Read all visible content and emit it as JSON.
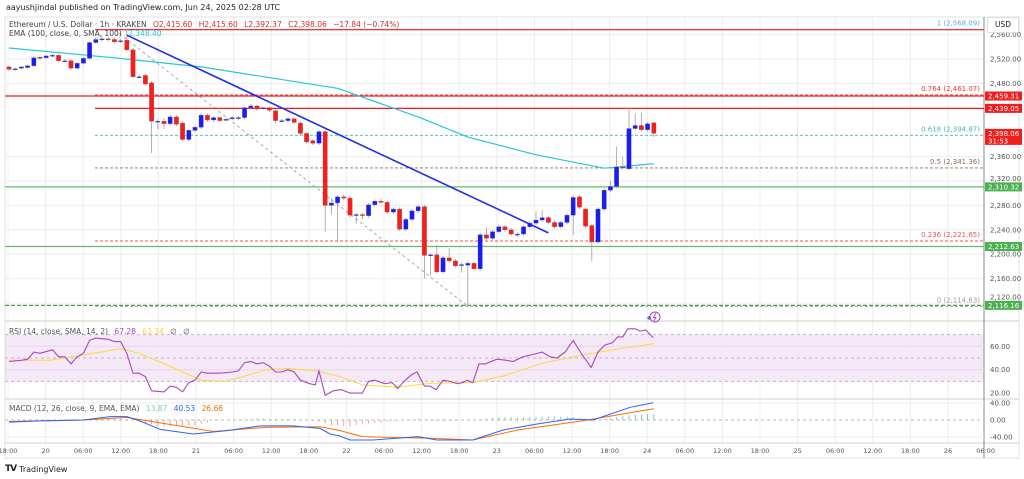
{
  "publish_line": "aayushjindal published on TradingView.com, Jun 24, 2025 02:28 UTC",
  "legend": {
    "symbol": "Ethereum / U.S. Dollar · 1h · KRAKEN",
    "open": "O2,415.60",
    "high": "H2,415.60",
    "low": "L2,392.37",
    "close": "C2,398.06",
    "change": "−17.84 (−0.74%)",
    "ema_label": "EMA (100, close, 0, SMA, 100)",
    "ema_value": "2,348.40"
  },
  "currency_button": "USD",
  "logo_text": "TradingView",
  "colors": {
    "up": "#1a1aff",
    "down": "#ff1a1a",
    "wick": "#9e9e9e",
    "ema": "#26c6da",
    "trendline": "#1e2ee8",
    "red_line": "#f21d1d",
    "green_line": "#66bb6a",
    "rsi": "#ab47bc",
    "rsi_sma": "#fdd835",
    "macd": "#2962ff",
    "signal": "#ff6d00",
    "hist_pos": "#26a69a",
    "hist_neg": "#ff5252"
  },
  "chart_data": {
    "type": "candlestick",
    "title": "Ethereum / U.S. Dollar · 1h · KRAKEN",
    "price_ticks": [
      2560,
      2520,
      2480,
      2360,
      2320,
      2280,
      2240,
      2200,
      2160,
      2120
    ],
    "price_tick_labels": [
      "2,560.00",
      "2,520.00",
      "2,480.00",
      "2,360.00",
      "2,320.00",
      "2,280.00",
      "2,240.00",
      "2,200.00",
      "2,160.00",
      "2,120.00"
    ],
    "grid": true,
    "time_tick_labels": [
      "18:00",
      "20",
      "06:00",
      "12:00",
      "18:00",
      "21",
      "06:00",
      "12:00",
      "18:00",
      "22",
      "06:00",
      "12:00",
      "18:00",
      "23",
      "06:00",
      "12:00",
      "18:00",
      "24",
      "06:00",
      "12:00",
      "18:00",
      "25",
      "06:00",
      "12:00",
      "18:00",
      "26",
      "06:00"
    ],
    "candles_ohlc": [
      [
        2507,
        2509,
        2501,
        2503
      ],
      [
        2503,
        2506,
        2501,
        2504
      ],
      [
        2505,
        2508,
        2503,
        2507
      ],
      [
        2506,
        2510,
        2504,
        2509
      ],
      [
        2509,
        2525,
        2507,
        2522
      ],
      [
        2523,
        2526,
        2519,
        2521
      ],
      [
        2522,
        2527,
        2520,
        2525
      ],
      [
        2525,
        2528,
        2523,
        2526
      ],
      [
        2526,
        2528,
        2514,
        2517
      ],
      [
        2517,
        2520,
        2514,
        2517
      ],
      [
        2517,
        2519,
        2502,
        2505
      ],
      [
        2505,
        2515,
        2503,
        2513
      ],
      [
        2513,
        2523,
        2511,
        2521
      ],
      [
        2521,
        2549,
        2519,
        2547
      ],
      [
        2547,
        2556,
        2545,
        2552
      ],
      [
        2552,
        2558,
        2549,
        2553
      ],
      [
        2553,
        2556,
        2549,
        2552
      ],
      [
        2552,
        2555,
        2546,
        2548
      ],
      [
        2549,
        2553,
        2546,
        2550
      ],
      [
        2551,
        2568.09,
        2532,
        2535
      ],
      [
        2535,
        2538,
        2489,
        2491
      ],
      [
        2491,
        2494,
        2488,
        2491
      ],
      [
        2493,
        2496,
        2476,
        2479
      ],
      [
        2481,
        2484,
        2366,
        2418
      ],
      [
        2418,
        2421,
        2405,
        2418
      ],
      [
        2418,
        2423,
        2405,
        2414
      ],
      [
        2414,
        2428,
        2410,
        2425
      ],
      [
        2425,
        2428,
        2410,
        2413
      ],
      [
        2415,
        2418,
        2385,
        2388
      ],
      [
        2388,
        2405,
        2385,
        2403
      ],
      [
        2403,
        2411,
        2400,
        2408
      ],
      [
        2408,
        2431,
        2405,
        2428
      ],
      [
        2428,
        2431,
        2417,
        2420
      ],
      [
        2420,
        2426,
        2417,
        2424
      ],
      [
        2424,
        2426,
        2416,
        2419
      ],
      [
        2421,
        2423,
        2418,
        2421
      ],
      [
        2422,
        2426,
        2420,
        2424
      ],
      [
        2424,
        2427,
        2421,
        2424
      ],
      [
        2424,
        2442,
        2421,
        2440
      ],
      [
        2440,
        2446,
        2437,
        2443
      ],
      [
        2443,
        2445,
        2435,
        2438
      ],
      [
        2440,
        2442,
        2437,
        2440
      ],
      [
        2440,
        2442,
        2433,
        2436
      ],
      [
        2435,
        2437,
        2415,
        2419
      ],
      [
        2419,
        2422,
        2416,
        2419
      ],
      [
        2419,
        2425,
        2416,
        2422
      ],
      [
        2422,
        2424,
        2413,
        2416
      ],
      [
        2415,
        2418,
        2395,
        2398
      ],
      [
        2398,
        2400,
        2381,
        2384
      ],
      [
        2386,
        2389,
        2379,
        2382
      ],
      [
        2382,
        2404,
        2379,
        2401
      ],
      [
        2401,
        2404,
        2237,
        2280
      ],
      [
        2280,
        2292,
        2265,
        2284
      ],
      [
        2284,
        2297,
        2220,
        2294
      ],
      [
        2294,
        2298,
        2289,
        2292
      ],
      [
        2292,
        2295,
        2260,
        2264
      ],
      [
        2265,
        2268,
        2250,
        2265
      ],
      [
        2265,
        2268,
        2258,
        2264
      ],
      [
        2263,
        2284,
        2260,
        2281
      ],
      [
        2281,
        2290,
        2278,
        2287
      ],
      [
        2287,
        2291,
        2282,
        2285
      ],
      [
        2285,
        2288,
        2266,
        2269
      ],
      [
        2269,
        2277,
        2266,
        2274
      ],
      [
        2274,
        2277,
        2238,
        2241
      ],
      [
        2241,
        2260,
        2238,
        2257
      ],
      [
        2257,
        2274,
        2254,
        2271
      ],
      [
        2271,
        2281,
        2268,
        2278
      ],
      [
        2278,
        2281,
        2160,
        2198
      ],
      [
        2199,
        2202,
        2165,
        2199
      ],
      [
        2199,
        2215,
        2168,
        2171
      ],
      [
        2171,
        2197,
        2168,
        2194
      ],
      [
        2194,
        2210,
        2186,
        2189
      ],
      [
        2189,
        2192,
        2178,
        2181
      ],
      [
        2182,
        2186,
        2170,
        2183
      ],
      [
        2182,
        2188,
        2114.63,
        2185
      ],
      [
        2185,
        2188,
        2173,
        2176
      ],
      [
        2176,
        2235,
        2173,
        2232
      ],
      [
        2232,
        2244,
        2223,
        2226
      ],
      [
        2226,
        2240,
        2223,
        2237
      ],
      [
        2237,
        2248,
        2234,
        2245
      ],
      [
        2245,
        2248,
        2237,
        2240
      ],
      [
        2240,
        2243,
        2230,
        2233
      ],
      [
        2233,
        2236,
        2228,
        2233
      ],
      [
        2233,
        2248,
        2230,
        2245
      ],
      [
        2245,
        2254,
        2242,
        2251
      ],
      [
        2251,
        2270,
        2248,
        2256
      ],
      [
        2256,
        2272,
        2253,
        2260
      ],
      [
        2260,
        2263,
        2249,
        2252
      ],
      [
        2252,
        2255,
        2242,
        2245
      ],
      [
        2245,
        2255,
        2242,
        2252
      ],
      [
        2252,
        2267,
        2249,
        2264
      ],
      [
        2264,
        2296,
        2231,
        2293
      ],
      [
        2294,
        2297,
        2274,
        2277
      ],
      [
        2274,
        2277,
        2243,
        2246
      ],
      [
        2247,
        2250,
        2189,
        2220
      ],
      [
        2220,
        2277,
        2217,
        2274
      ],
      [
        2274,
        2308,
        2271,
        2305
      ],
      [
        2305,
        2320,
        2302,
        2311
      ],
      [
        2311,
        2376,
        2308,
        2343
      ],
      [
        2343,
        2360,
        2339,
        2342
      ],
      [
        2340,
        2440,
        2337,
        2406
      ],
      [
        2406,
        2431,
        2403,
        2411
      ],
      [
        2411,
        2432,
        2401,
        2404
      ],
      [
        2404,
        2416,
        2401,
        2414
      ],
      [
        2415.6,
        2415.6,
        2392.37,
        2398.06
      ]
    ],
    "ema100_points_bar_price": [
      [
        0,
        2538
      ],
      [
        17,
        2522
      ],
      [
        31,
        2507
      ],
      [
        53,
        2472
      ],
      [
        66,
        2425
      ],
      [
        74,
        2392
      ],
      [
        85,
        2363
      ],
      [
        96,
        2341
      ],
      [
        104,
        2348.4
      ]
    ],
    "trendline_bar_price": [
      [
        19,
        2559
      ],
      [
        87,
        2235
      ]
    ],
    "fib_anchor_bar_price": [
      [
        17,
        2568.09
      ],
      [
        74,
        2114.63
      ]
    ],
    "fib_levels": [
      {
        "label": "1 (2,568.09)",
        "price": 2568.09,
        "color": "#64a8d8"
      },
      {
        "label": "0.764 (2,461.07)",
        "price": 2461.07,
        "color": "#e53935"
      },
      {
        "label": "0.618 (2,394.87)",
        "price": 2394.87,
        "color": "#4db6ac"
      },
      {
        "label": "0.5 (2,341.36)",
        "price": 2341.36,
        "color": "#8d6e63"
      },
      {
        "label": "0.236 (2,221.65)",
        "price": 2221.65,
        "color": "#ef5350"
      },
      {
        "label": "0 (2,114.63)",
        "price": 2114.63,
        "color": "#9e9e9e"
      }
    ],
    "horizontal_lines": [
      {
        "price": 2568.09,
        "color": "#f21d1d",
        "style": "solid"
      },
      {
        "price": 2459.31,
        "color": "#f21d1d",
        "style": "solid"
      },
      {
        "price": 2439.05,
        "color": "#f21d1d",
        "style": "solid"
      },
      {
        "price": 2310.32,
        "color": "#66bb6a",
        "style": "solid"
      },
      {
        "price": 2212.63,
        "color": "#66bb6a",
        "style": "solid"
      },
      {
        "price": 2116.16,
        "color": "#43a047",
        "style": "dashed"
      }
    ],
    "price_badges": [
      {
        "text": "2,459.31",
        "price": 2459.31,
        "color": "#f21d1d"
      },
      {
        "text": "2,439.05",
        "price": 2439.05,
        "color": "#f21d1d"
      },
      {
        "text": "2,398.06",
        "sub": "31:53",
        "price": 2398.06,
        "color": "#f21d1d"
      },
      {
        "text": "2,310.32",
        "price": 2310.32,
        "color": "#4caf50"
      },
      {
        "text": "2,212.63",
        "price": 2212.63,
        "color": "#4caf50"
      },
      {
        "text": "2,116.16",
        "price": 2116.16,
        "color": "#4caf50"
      }
    ],
    "rsi": {
      "label": "RSI (14, close, SMA, 14, 2)",
      "value": "67.28",
      "sma_value": "62.34",
      "extra": [
        "∅",
        "∅"
      ],
      "ticks": [
        "60.00",
        "40.00",
        "20.00"
      ],
      "band": [
        30,
        70
      ],
      "points_bar_value": [
        [
          0,
          47
        ],
        [
          2,
          48
        ],
        [
          3,
          49
        ],
        [
          4,
          55
        ],
        [
          5,
          54
        ],
        [
          7,
          57
        ],
        [
          8,
          51
        ],
        [
          9,
          51
        ],
        [
          10,
          45
        ],
        [
          11,
          51
        ],
        [
          12,
          54
        ],
        [
          13,
          65
        ],
        [
          14,
          67
        ],
        [
          16,
          66
        ],
        [
          17,
          64
        ],
        [
          18,
          64
        ],
        [
          19,
          54
        ],
        [
          20,
          37
        ],
        [
          21,
          37
        ],
        [
          22,
          34
        ],
        [
          23,
          22
        ],
        [
          25,
          21
        ],
        [
          26,
          26
        ],
        [
          27,
          25
        ],
        [
          28,
          21
        ],
        [
          29,
          29
        ],
        [
          30,
          31
        ],
        [
          31,
          38
        ],
        [
          32,
          37
        ],
        [
          34,
          37
        ],
        [
          36,
          38
        ],
        [
          37,
          39
        ],
        [
          38,
          46
        ],
        [
          39,
          47
        ],
        [
          40,
          45
        ],
        [
          41,
          46
        ],
        [
          42,
          43
        ],
        [
          43,
          38
        ],
        [
          44,
          38
        ],
        [
          45,
          40
        ],
        [
          46,
          38
        ],
        [
          47,
          31
        ],
        [
          48.5,
          28
        ],
        [
          49.4,
          27
        ],
        [
          50,
          39
        ],
        [
          51,
          18
        ],
        [
          52.3,
          22
        ],
        [
          53.6,
          23
        ],
        [
          55,
          20
        ],
        [
          57,
          20
        ],
        [
          58,
          30
        ],
        [
          59,
          31
        ],
        [
          60.6,
          28
        ],
        [
          61.8,
          29
        ],
        [
          62.7,
          24
        ],
        [
          63.9,
          31
        ],
        [
          65,
          36
        ],
        [
          65.8,
          38
        ],
        [
          67,
          26
        ],
        [
          67.9,
          26
        ],
        [
          68.9,
          23
        ],
        [
          70,
          31
        ],
        [
          71.1,
          30
        ],
        [
          72.3,
          28
        ],
        [
          73.2,
          29
        ],
        [
          73.9,
          31
        ],
        [
          74.8,
          29
        ],
        [
          75.8,
          45
        ],
        [
          76.8,
          45
        ],
        [
          78.7,
          49
        ],
        [
          80.3,
          48
        ],
        [
          81.3,
          47
        ],
        [
          82.9,
          51
        ],
        [
          84.5,
          53
        ],
        [
          86,
          55
        ],
        [
          87.3,
          51
        ],
        [
          88.4,
          50
        ],
        [
          89.7,
          55
        ],
        [
          91,
          65
        ],
        [
          92.4,
          53
        ],
        [
          93.9,
          42
        ],
        [
          95,
          55
        ],
        [
          96.1,
          61
        ],
        [
          97.3,
          63
        ],
        [
          98.2,
          68
        ],
        [
          99,
          68
        ],
        [
          99.8,
          75
        ],
        [
          101,
          75
        ],
        [
          101.8,
          73
        ],
        [
          102.7,
          74
        ],
        [
          103.9,
          67.28
        ]
      ],
      "sma_points_bar_value": [
        [
          0,
          48
        ],
        [
          6.6,
          48
        ],
        [
          12,
          52.5
        ],
        [
          18,
          58
        ],
        [
          21,
          54
        ],
        [
          25.5,
          44
        ],
        [
          31,
          31
        ],
        [
          35,
          30
        ],
        [
          41.6,
          40
        ],
        [
          45,
          41
        ],
        [
          49.7,
          39
        ],
        [
          53.4,
          34
        ],
        [
          57,
          27
        ],
        [
          62.6,
          25
        ],
        [
          68,
          28.5
        ],
        [
          74.8,
          29
        ],
        [
          79.7,
          34.6
        ],
        [
          86,
          45.5
        ],
        [
          91.6,
          51.7
        ],
        [
          97.4,
          57
        ],
        [
          104,
          62.34
        ]
      ]
    },
    "macd": {
      "label": "MACD (12, 26, close, 9, EMA, EMA)",
      "hist_value": "13.87",
      "macd_value": "40.53",
      "signal_value": "26.66",
      "ticks": [
        "40.00",
        "0.00",
        "-40.00"
      ],
      "macd_points_bar_value": [
        [
          0,
          -5
        ],
        [
          5,
          -2
        ],
        [
          12,
          0
        ],
        [
          16.3,
          8
        ],
        [
          19,
          8
        ],
        [
          21.1,
          -2
        ],
        [
          24.4,
          -22
        ],
        [
          29.7,
          -33
        ],
        [
          35.2,
          -25
        ],
        [
          40.5,
          -14
        ],
        [
          45.8,
          -14
        ],
        [
          50.2,
          -20
        ],
        [
          51.8,
          -33
        ],
        [
          53.4,
          -38
        ],
        [
          55,
          -47
        ],
        [
          58.7,
          -47
        ],
        [
          66,
          -39
        ],
        [
          69,
          -47
        ],
        [
          74.8,
          -47
        ],
        [
          79.7,
          -23.5
        ],
        [
          85.2,
          -9.4
        ],
        [
          90.5,
          2.4
        ],
        [
          94.2,
          0
        ],
        [
          100.2,
          30
        ],
        [
          103.9,
          40.53
        ]
      ],
      "signal_points_bar_value": [
        [
          0,
          -3.5
        ],
        [
          12,
          0
        ],
        [
          19,
          6
        ],
        [
          25.5,
          -9.4
        ],
        [
          33,
          -27
        ],
        [
          41.6,
          -17
        ],
        [
          50.2,
          -16
        ],
        [
          53.4,
          -25
        ],
        [
          57,
          -39
        ],
        [
          68,
          -43
        ],
        [
          74.8,
          -47
        ],
        [
          82,
          -23.5
        ],
        [
          92.6,
          -1.6
        ],
        [
          104,
          26.66
        ]
      ]
    }
  }
}
